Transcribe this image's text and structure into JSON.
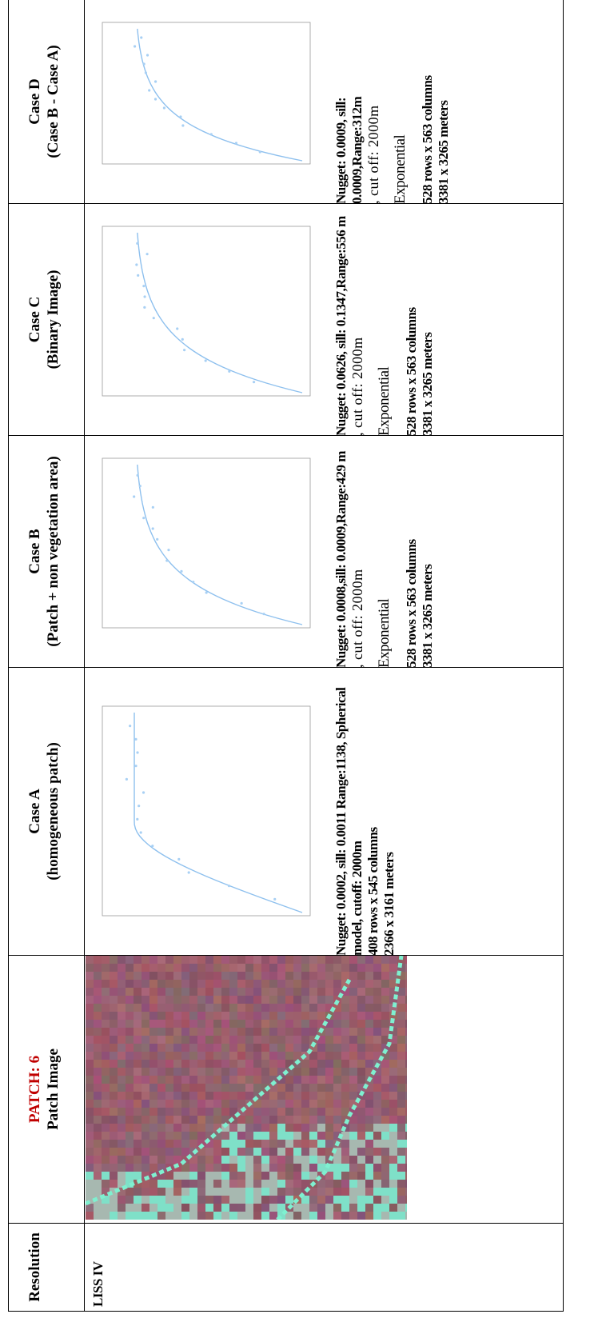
{
  "table": {
    "header": [
      {
        "title": "Resolution"
      },
      {
        "title": "PATCH: 6",
        "subtitle": "Patch Image"
      },
      {
        "title": "Case A",
        "subtitle": "(homogeneous patch)"
      },
      {
        "title": "Case B",
        "subtitle": "(Patch + non vegetation area)"
      },
      {
        "title": "Case C",
        "subtitle": "(Binary Image)"
      },
      {
        "title": "Case D",
        "subtitle": "(Case B - Case A)"
      }
    ],
    "row": {
      "resolution": "LISS IV",
      "cases": [
        {
          "params": "Nugget: 0.0002, sill: 0.0011 Range:1138, Spherical model, cutoff: 2000m",
          "size_rows_cols": "408 rows x  545 columns",
          "size_meters": "2366 x 3161 meters"
        },
        {
          "params": "Nugget: 0.0008,sill: 0.0009,Range:429 m",
          "cutoff": ", cut off: 2000m",
          "model": "Exponential",
          "size_rows_cols": "528 rows x  563 columns",
          "size_meters": "3381 x 3265 meters"
        },
        {
          "params": "Nugget: 0.0626, sill: 0.1347,Range:556 m",
          "cutoff": ", cut off: 2000m",
          "model": "Exponential",
          "size_rows_cols": "528 rows x  563 columns",
          "size_meters": "3381 x 3265 meters"
        },
        {
          "params": "Nugget: 0.0009, sill: 0.0009,Range:312m",
          "cutoff": ", cut off: 2000m",
          "model": "Exponential",
          "size_rows_cols": "528 rows x  563 columns",
          "size_meters": "3381 x 3265 meters"
        }
      ]
    }
  }
}
